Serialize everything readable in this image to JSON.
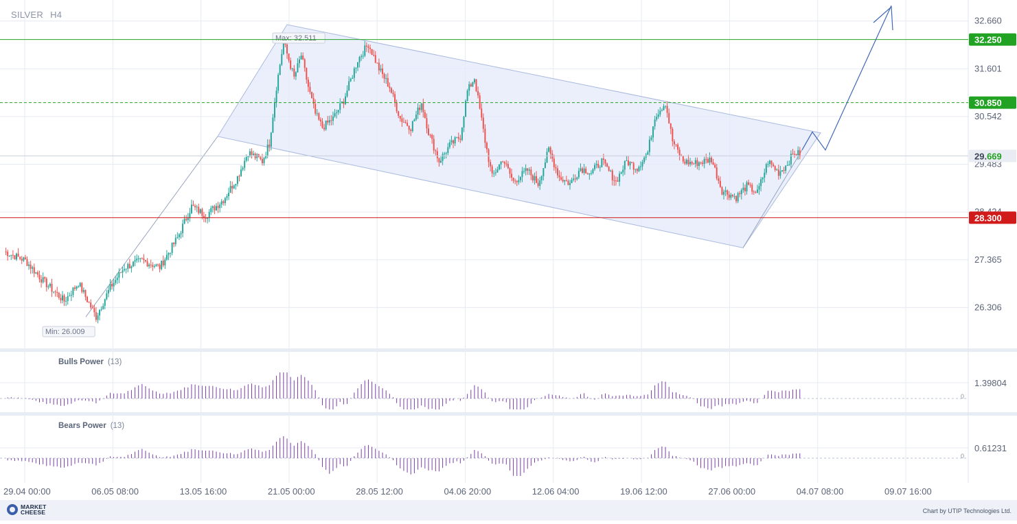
{
  "header": {
    "symbol": "SILVER",
    "timeframe": "H4"
  },
  "colors": {
    "up": "#26a69a",
    "down": "#ef5350",
    "resistance": "#22a222",
    "support": "#d11a1a",
    "channel_fill": "#e3eaf9",
    "channel_edge": "#a9b9dd",
    "arrow": "#3f67b5",
    "indicator_bar": "#7b3fa8",
    "grid": "#e6eaf3",
    "current_price_bg": "#e9ecf2",
    "current_price_text": "#22a222"
  },
  "chart_data": [
    {
      "type": "candlestick",
      "instrument": "SILVER",
      "timeframe": "H4",
      "x_tick_labels": [
        "29.04 00:00",
        "06.05 08:00",
        "13.05 16:00",
        "21.05 00:00",
        "28.05 12:00",
        "04.06 20:00",
        "12.06 04:00",
        "19.06 12:00",
        "27.06 00:00",
        "04.07 08:00",
        "09.07 16:00"
      ],
      "y_tick_labels": [
        "32.660",
        "31.601",
        "30.542",
        "29.483",
        "28.424",
        "27.365",
        "26.306"
      ],
      "ylim": [
        25.4,
        33.05
      ],
      "grid": true,
      "close_path": [
        [
          0,
          27.55
        ],
        [
          12,
          27.35
        ],
        [
          22,
          26.9
        ],
        [
          34,
          26.45
        ],
        [
          42,
          26.85
        ],
        [
          52,
          26.1
        ],
        [
          60,
          26.75
        ],
        [
          68,
          27.2
        ],
        [
          78,
          27.35
        ],
        [
          88,
          27.2
        ],
        [
          98,
          27.85
        ],
        [
          106,
          28.55
        ],
        [
          114,
          28.35
        ],
        [
          124,
          28.7
        ],
        [
          132,
          29.2
        ],
        [
          138,
          29.75
        ],
        [
          146,
          29.55
        ],
        [
          150,
          29.95
        ],
        [
          154,
          31.2
        ],
        [
          158,
          32.2
        ],
        [
          164,
          31.4
        ],
        [
          168,
          31.9
        ],
        [
          172,
          31.2
        ],
        [
          176,
          30.6
        ],
        [
          180,
          30.3
        ],
        [
          186,
          30.5
        ],
        [
          192,
          30.9
        ],
        [
          200,
          31.8
        ],
        [
          206,
          32.15
        ],
        [
          212,
          31.6
        ],
        [
          218,
          31.2
        ],
        [
          224,
          30.5
        ],
        [
          230,
          30.3
        ],
        [
          236,
          30.85
        ],
        [
          240,
          30.2
        ],
        [
          246,
          29.55
        ],
        [
          252,
          29.9
        ],
        [
          258,
          30.1
        ],
        [
          262,
          31.1
        ],
        [
          266,
          31.4
        ],
        [
          272,
          30.0
        ],
        [
          276,
          29.2
        ],
        [
          282,
          29.6
        ],
        [
          288,
          29.1
        ],
        [
          296,
          29.35
        ],
        [
          302,
          29.05
        ],
        [
          308,
          29.8
        ],
        [
          314,
          29.2
        ],
        [
          320,
          29.05
        ],
        [
          326,
          29.4
        ],
        [
          332,
          29.3
        ],
        [
          338,
          29.55
        ],
        [
          346,
          29.1
        ],
        [
          352,
          29.55
        ],
        [
          358,
          29.4
        ],
        [
          364,
          29.75
        ],
        [
          368,
          30.55
        ],
        [
          374,
          30.85
        ],
        [
          378,
          30.0
        ],
        [
          384,
          29.55
        ],
        [
          390,
          29.5
        ],
        [
          396,
          29.55
        ],
        [
          400,
          29.6
        ],
        [
          406,
          28.9
        ],
        [
          414,
          28.75
        ],
        [
          420,
          29.0
        ],
        [
          426,
          28.85
        ],
        [
          432,
          29.55
        ],
        [
          438,
          29.3
        ],
        [
          442,
          29.45
        ],
        [
          447,
          29.75
        ],
        [
          450,
          29.7
        ]
      ],
      "min_label": "Min: 26.009",
      "max_label": "Max: 32.511",
      "price_levels": [
        {
          "price": 32.25,
          "label": "32.250",
          "style": "solid",
          "color": "#22a222"
        },
        {
          "price": 30.85,
          "label": "30.850",
          "style": "dashed",
          "color": "#22a222"
        },
        {
          "price": 28.3,
          "label": "28.300",
          "style": "solid",
          "color": "#d11a1a"
        }
      ],
      "current_price": {
        "value": 29.669,
        "label_main": "29.",
        "label_accent": "669"
      },
      "annotations": [
        "rising channel",
        "descending channel",
        "forecast arrow to upside"
      ]
    },
    {
      "type": "bar",
      "title": "Bulls Power",
      "period": "(13)",
      "tick_label": "1.39804",
      "zero_label": "0"
    },
    {
      "type": "bar",
      "title": "Bears Power",
      "period": "(13)",
      "tick_label": "0.61231",
      "zero_label": "0"
    }
  ],
  "footer": {
    "brand_line1": "MARKET",
    "brand_line2": "CHEESE",
    "credit": "Chart by UTIP Technologies Ltd."
  }
}
